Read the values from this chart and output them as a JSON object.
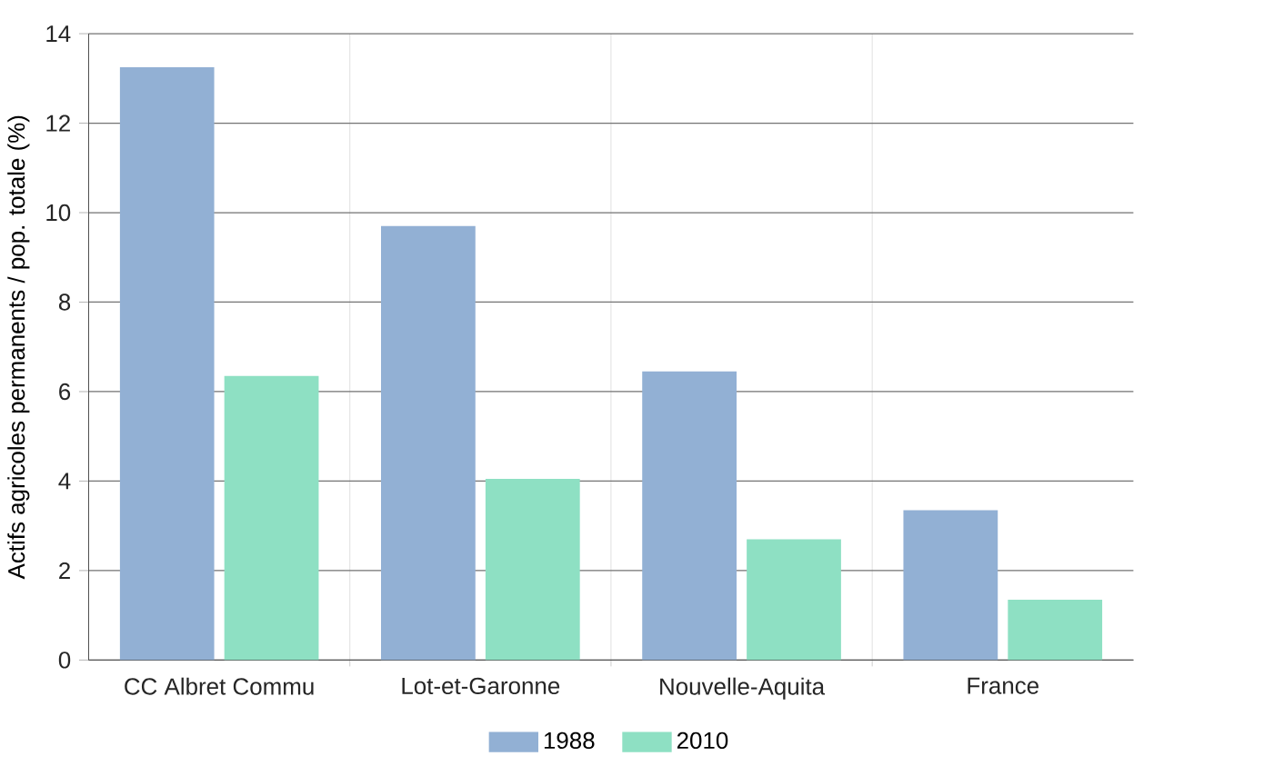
{
  "chart_data": {
    "type": "bar",
    "ylabel": "Actifs agricoles permanents / pop. totale (%)",
    "categories": [
      "CC Albret Commu",
      "Lot-et-Garonne",
      "Nouvelle-Aquita",
      "France"
    ],
    "series": [
      {
        "name": "1988",
        "color": "#92b0d4",
        "values": [
          13.25,
          9.7,
          6.45,
          3.35
        ]
      },
      {
        "name": "2010",
        "color": "#8ee0c3",
        "values": [
          6.35,
          4.05,
          2.7,
          1.35
        ]
      }
    ],
    "ylim": [
      0,
      14
    ],
    "yticks": [
      0,
      2,
      4,
      6,
      8,
      10,
      12,
      14
    ],
    "grid": "y",
    "legend": "bottom"
  }
}
